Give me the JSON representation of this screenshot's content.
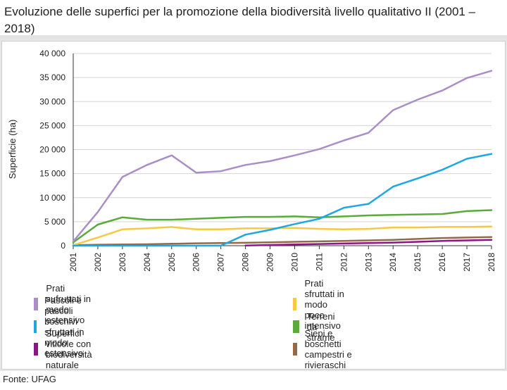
{
  "title": "Evoluzione delle superfici per la promozione della biodiversità livello qualitativo II (2001 – 2018)",
  "source": "Fonte: UFAG",
  "chart_data": {
    "type": "line",
    "title": "Evoluzione delle superfici per la promozione della biodiversità livello qualitativo II (2001 – 2018)",
    "xlabel": "",
    "ylabel": "Superficie (ha)",
    "ylim": [
      0,
      40000
    ],
    "yticks": [
      0,
      5000,
      10000,
      15000,
      20000,
      25000,
      30000,
      35000,
      40000
    ],
    "ytick_labels": [
      "0",
      "5 000",
      "10 000",
      "15 000",
      "20 000",
      "25 000",
      "30 000",
      "35 000",
      "40 000"
    ],
    "categories": [
      "2001",
      "2002",
      "2003",
      "2004",
      "2005",
      "2006",
      "2007",
      "2008",
      "2009",
      "2010",
      "2011",
      "2012",
      "2013",
      "2014",
      "2015",
      "2016",
      "2017",
      "2018"
    ],
    "grid": true,
    "legend_position": "bottom",
    "series": [
      {
        "name": "Prati sufruttati in modo estensivo",
        "color": "#a98fc6",
        "values": [
          900,
          7000,
          14300,
          16800,
          18800,
          15200,
          15500,
          16800,
          17600,
          18800,
          20100,
          21900,
          23500,
          28200,
          30400,
          32300,
          34900,
          36400
        ]
      },
      {
        "name": "Prati sfruttati in modo poco intensivo",
        "color": "#f6c945",
        "values": [
          100,
          1700,
          3400,
          3600,
          3900,
          3400,
          3400,
          3600,
          3600,
          3700,
          3500,
          3400,
          3500,
          3800,
          3800,
          3900,
          3900,
          4000
        ]
      },
      {
        "name": "Pascoli e pascoli boschivi sfruttati in modo estensivo",
        "color": "#1ea7e0",
        "values": [
          0,
          0,
          0,
          0,
          0,
          0,
          0,
          2300,
          3300,
          4500,
          5600,
          7900,
          8700,
          12300,
          14000,
          15800,
          18100,
          19100
        ]
      },
      {
        "name": "Terreni da strame",
        "color": "#5aab3a",
        "values": [
          700,
          4400,
          5900,
          5400,
          5400,
          5600,
          5800,
          6000,
          6000,
          6100,
          5900,
          6100,
          6300,
          6400,
          6500,
          6600,
          7200,
          7400
        ]
      },
      {
        "name": "Superfici viticole con biodiversità naturale",
        "color": "#8e1587",
        "values": [
          null,
          null,
          null,
          null,
          null,
          null,
          null,
          50,
          150,
          250,
          350,
          450,
          550,
          650,
          800,
          1000,
          1100,
          1200
        ]
      },
      {
        "name": "Siepi e boschetti campestri e rivieraschi",
        "color": "#94694a",
        "values": [
          100,
          200,
          250,
          300,
          400,
          500,
          550,
          600,
          700,
          800,
          900,
          1000,
          1100,
          1200,
          1400,
          1600,
          1700,
          1800
        ]
      }
    ]
  }
}
